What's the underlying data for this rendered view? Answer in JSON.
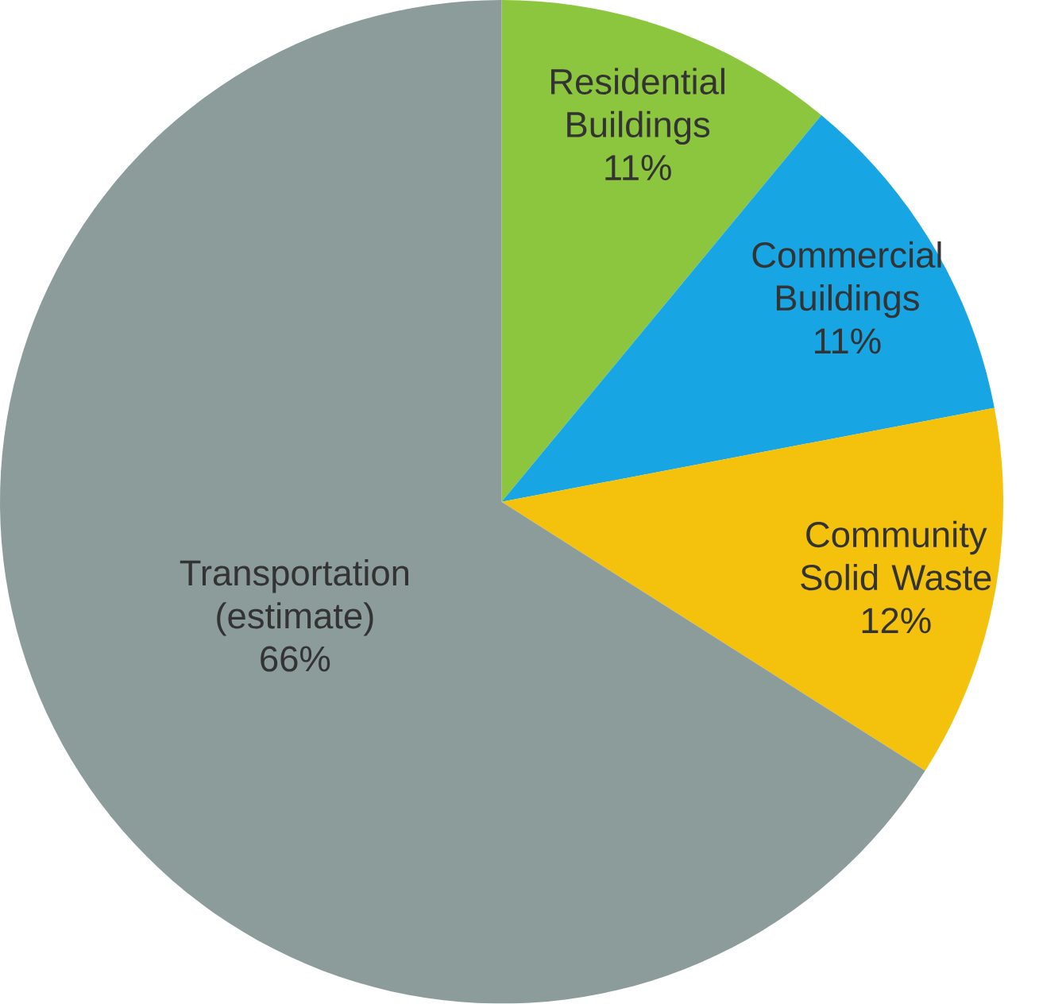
{
  "chart_data": {
    "type": "pie",
    "categories": [
      "Residential Buildings",
      "Commercial Buildings",
      "Community Solid Waste",
      "Transportation (estimate)"
    ],
    "values": [
      11,
      11,
      12,
      66
    ],
    "value_labels": [
      "11%",
      "11%",
      "12%",
      "66%"
    ],
    "colors": [
      "#8cc63e",
      "#17a6e3",
      "#f4c20d",
      "#8c9c9b"
    ]
  }
}
